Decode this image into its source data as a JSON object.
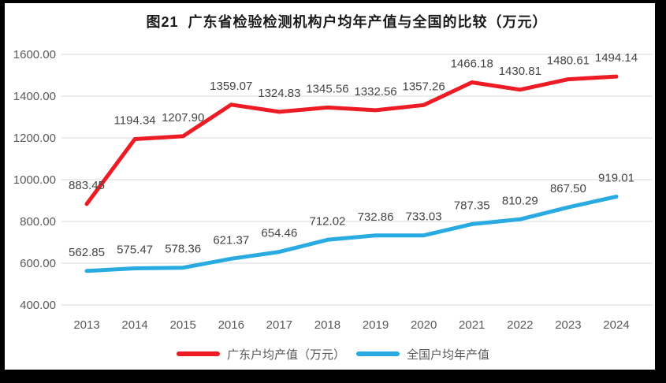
{
  "frame": {
    "background_color": "#000000",
    "surface_color": "#ffffff"
  },
  "title": "图21  广东省检验检测机构户均年产值与全国的比较（万元）",
  "chart_data": {
    "type": "line",
    "title": "图21  广东省检验检测机构户均年产值与全国的比较（万元）",
    "x": [
      "2013",
      "2014",
      "2015",
      "2016",
      "2017",
      "2018",
      "2019",
      "2020",
      "2021",
      "2022",
      "2023",
      "2024"
    ],
    "series": [
      {
        "name": "广东户均产值（万元）",
        "color": "#ed1c24",
        "values": [
          883.45,
          1194.34,
          1207.9,
          1359.07,
          1324.83,
          1345.56,
          1332.56,
          1357.26,
          1466.18,
          1430.81,
          1480.61,
          1494.14
        ]
      },
      {
        "name": "全国户均年产值",
        "color": "#29abe2",
        "values": [
          562.85,
          575.47,
          578.36,
          621.37,
          654.46,
          712.02,
          732.86,
          733.03,
          787.35,
          810.29,
          867.5,
          919.01
        ]
      }
    ],
    "xlabel": "",
    "ylabel": "",
    "ylim": [
      400,
      1600
    ],
    "ytick_step": 200,
    "ytick_labels": [
      "400.00",
      "600.00",
      "800.00",
      "1000.00",
      "1200.00",
      "1400.00",
      "1600.00"
    ],
    "grid": true,
    "data_labels": true,
    "legend_position": "bottom",
    "colors": {
      "gridline": "#d9d9d9",
      "axis_tick_label": "#595959",
      "data_label": "#444444"
    }
  },
  "legend": {
    "items": [
      {
        "label": "广东户均产值（万元）",
        "color": "#ed1c24"
      },
      {
        "label": "全国户均年产值",
        "color": "#29abe2"
      }
    ]
  }
}
